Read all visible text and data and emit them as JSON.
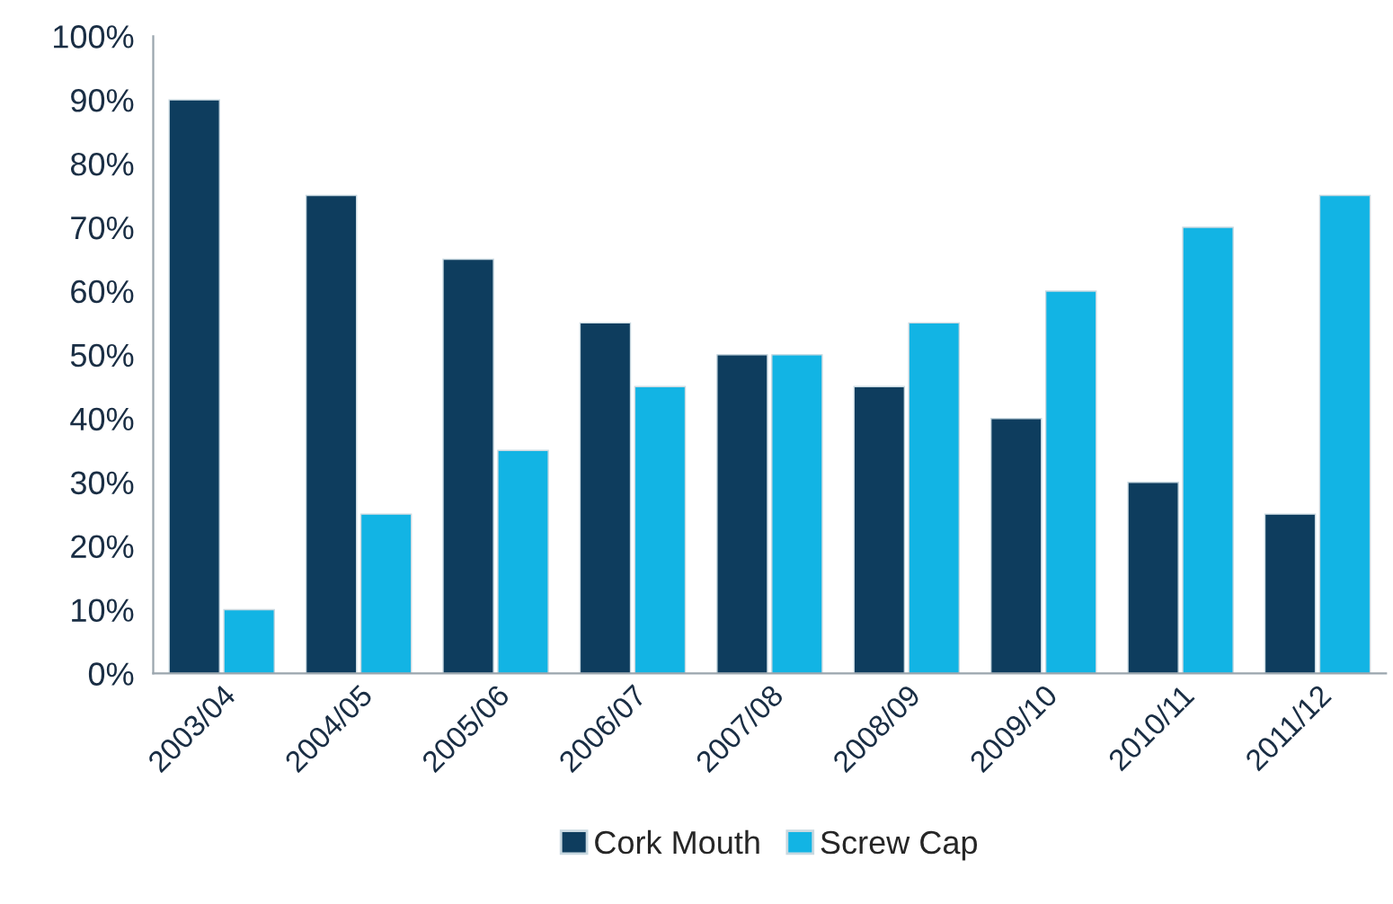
{
  "chart_data": {
    "type": "bar",
    "categories": [
      "2003/04",
      "2004/05",
      "2005/06",
      "2006/07",
      "2007/08",
      "2008/09",
      "2009/10",
      "2010/11",
      "2011/12"
    ],
    "series": [
      {
        "name": "Cork Mouth",
        "color": "#0e3d5e",
        "values": [
          90,
          75,
          65,
          55,
          50,
          45,
          40,
          30,
          25
        ]
      },
      {
        "name": "Screw Cap",
        "color": "#12b4e4",
        "values": [
          10,
          25,
          35,
          45,
          50,
          55,
          60,
          70,
          75
        ]
      }
    ],
    "ylim": [
      0,
      100
    ],
    "yticks": [
      {
        "value": 0,
        "label": "0%"
      },
      {
        "value": 10,
        "label": "10%"
      },
      {
        "value": 20,
        "label": "20%"
      },
      {
        "value": 30,
        "label": "30%"
      },
      {
        "value": 40,
        "label": "40%"
      },
      {
        "value": 50,
        "label": "50%"
      },
      {
        "value": 60,
        "label": "60%"
      },
      {
        "value": 70,
        "label": "70%"
      },
      {
        "value": 80,
        "label": "80%"
      },
      {
        "value": 90,
        "label": "90%"
      },
      {
        "value": 100,
        "label": "100%"
      }
    ],
    "grid": false,
    "legend": "bottom"
  }
}
